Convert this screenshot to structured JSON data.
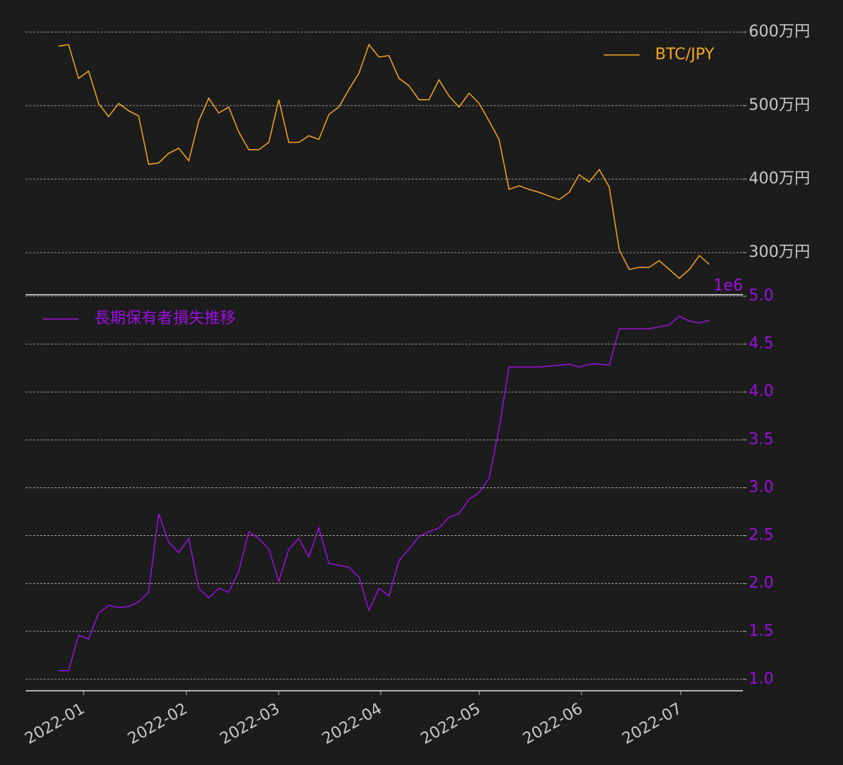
{
  "chart_data": [
    {
      "type": "line",
      "series": [
        {
          "name": "BTC/JPY",
          "color": "#f5a623",
          "values": [
            5810000,
            5830000,
            5370000,
            5470000,
            5030000,
            4850000,
            5030000,
            4930000,
            4860000,
            4200000,
            4220000,
            4350000,
            4420000,
            4250000,
            4790000,
            5100000,
            4900000,
            4980000,
            4640000,
            4400000,
            4400000,
            4500000,
            5080000,
            4500000,
            4500000,
            4590000,
            4540000,
            4880000,
            4980000,
            5220000,
            5440000,
            5830000,
            5660000,
            5680000,
            5370000,
            5270000,
            5080000,
            5080000,
            5350000,
            5130000,
            4980000,
            5170000,
            5030000,
            4790000,
            4540000,
            3860000,
            3910000,
            3860000,
            3820000,
            3770000,
            3720000,
            3820000,
            4060000,
            3960000,
            4130000,
            3890000,
            3040000,
            2770000,
            2800000,
            2800000,
            2890000,
            2770000,
            2650000,
            2770000,
            2960000,
            2840000
          ]
        }
      ],
      "xlim": [
        -3.28,
        68.36
      ],
      "ylim": [
        2427000,
        6194000
      ],
      "yticks": [
        {
          "value": 3000000,
          "label": "300万円"
        },
        {
          "value": 4000000,
          "label": "400万円"
        },
        {
          "value": 5000000,
          "label": "500万円"
        },
        {
          "value": 6000000,
          "label": "600万円"
        }
      ],
      "tick_label_color": "#c8c8c8",
      "grid": true,
      "legend": "upper right"
    },
    {
      "type": "line",
      "series": [
        {
          "name": "長期保有者損失推移",
          "color": "#9b10e0",
          "values": [
            1.09,
            1.09,
            1.46,
            1.42,
            1.69,
            1.77,
            1.75,
            1.76,
            1.81,
            1.91,
            2.73,
            2.43,
            2.32,
            2.47,
            1.95,
            1.85,
            1.95,
            1.91,
            2.13,
            2.54,
            2.47,
            2.36,
            2.02,
            2.36,
            2.47,
            2.28,
            2.58,
            2.21,
            2.19,
            2.17,
            2.07,
            1.72,
            1.95,
            1.87,
            2.24,
            2.36,
            2.49,
            2.54,
            2.58,
            2.69,
            2.73,
            2.88,
            2.95,
            3.1,
            3.62,
            4.26,
            4.26,
            4.26,
            4.26,
            4.27,
            4.28,
            4.29,
            4.26,
            4.29,
            4.29,
            4.28,
            4.66,
            4.66,
            4.66,
            4.66,
            4.68,
            4.7,
            4.79,
            4.74,
            4.72,
            4.75
          ]
        }
      ],
      "xlim": [
        -3.28,
        68.36
      ],
      "xticks": [
        {
          "value": 2.5,
          "label": "2022-01"
        },
        {
          "value": 12.77,
          "label": "2022-02"
        },
        {
          "value": 21.98,
          "label": "2022-03"
        },
        {
          "value": 32.18,
          "label": "2022-04"
        },
        {
          "value": 42.03,
          "label": "2022-05"
        },
        {
          "value": 52.23,
          "label": "2022-06"
        },
        {
          "value": 62.15,
          "label": "2022-07"
        }
      ],
      "ylim": [
        0.88,
        5.015
      ],
      "yticks": [
        {
          "value": 1,
          "label": "1.0"
        },
        {
          "value": 1.5,
          "label": "1.5"
        },
        {
          "value": 2,
          "label": "2.0"
        },
        {
          "value": 2.5,
          "label": "2.5"
        },
        {
          "value": 3,
          "label": "3.0"
        },
        {
          "value": 3.5,
          "label": "3.5"
        },
        {
          "value": 4,
          "label": "4.0"
        },
        {
          "value": 4.5,
          "label": "4.5"
        },
        {
          "value": 5,
          "label": "5.0"
        }
      ],
      "offset_label": "1e6",
      "tick_label_color": "#9b10e0",
      "grid": true,
      "legend": "upper left"
    }
  ]
}
